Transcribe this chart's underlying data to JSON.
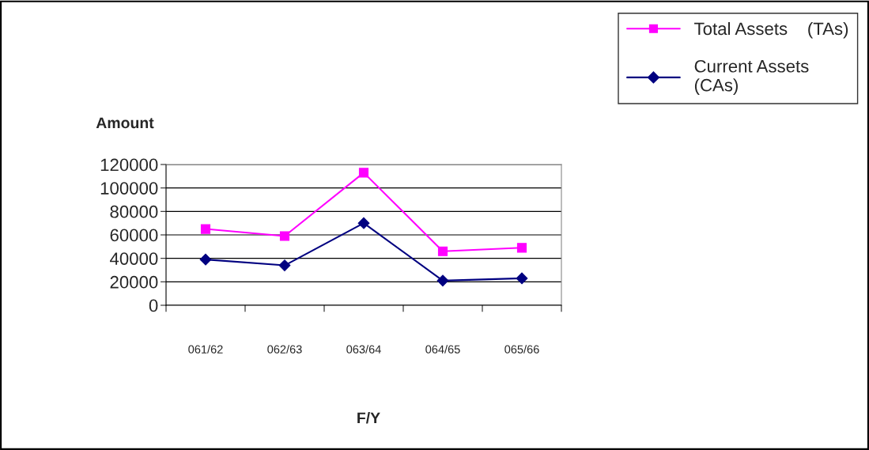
{
  "chart_data": {
    "type": "line",
    "xlabel": "F/Y",
    "ylabel": "Amount",
    "categories": [
      "061/62",
      "062/63",
      "063/64",
      "064/65",
      "065/66"
    ],
    "series": [
      {
        "name": "Total Assets    (TAs)",
        "color": "#ff00ff",
        "marker": "square",
        "values": [
          65000,
          59000,
          113000,
          46000,
          49000
        ]
      },
      {
        "name": "Current Assets\n(CAs)",
        "color": "#000080",
        "marker": "diamond",
        "values": [
          39000,
          34000,
          70000,
          21000,
          23000
        ]
      }
    ],
    "ylim": [
      0,
      120000
    ],
    "yticks": [
      0,
      20000,
      40000,
      60000,
      80000,
      100000,
      120000
    ],
    "grid": "y",
    "legend": "top right",
    "line_style": "solid"
  }
}
